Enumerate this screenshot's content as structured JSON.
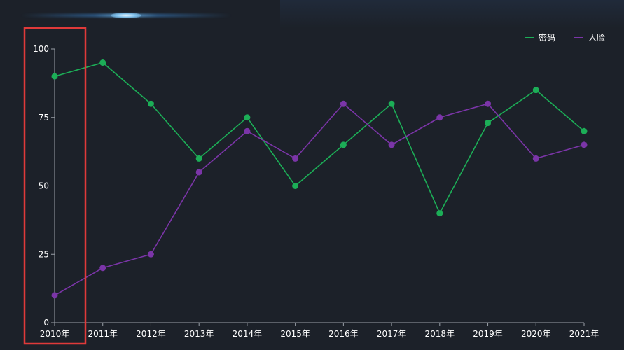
{
  "colors": {
    "background": "#1c2129",
    "axis": "#9aa0a8",
    "highlight": "#e03a3a"
  },
  "chart_data": {
    "type": "line",
    "title": "",
    "xlabel": "",
    "ylabel": "",
    "categories": [
      "2010年",
      "2011年",
      "2012年",
      "2013年",
      "2014年",
      "2015年",
      "2016年",
      "2017年",
      "2018年",
      "2019年",
      "2020年",
      "2021年"
    ],
    "ylim": [
      0,
      100
    ],
    "yticks": [
      "0",
      "25",
      "50",
      "75",
      "100"
    ],
    "grid": false,
    "legend_position": "top-right",
    "highlighted_category": "2010年",
    "series": [
      {
        "name": "密码",
        "color": "#1cae57",
        "values": [
          90,
          95,
          80,
          60,
          75,
          50,
          65,
          80,
          40,
          73,
          85,
          70
        ]
      },
      {
        "name": "人脸",
        "color": "#7b35a8",
        "values": [
          10,
          20,
          25,
          55,
          70,
          60,
          80,
          65,
          75,
          80,
          60,
          65
        ]
      }
    ]
  }
}
